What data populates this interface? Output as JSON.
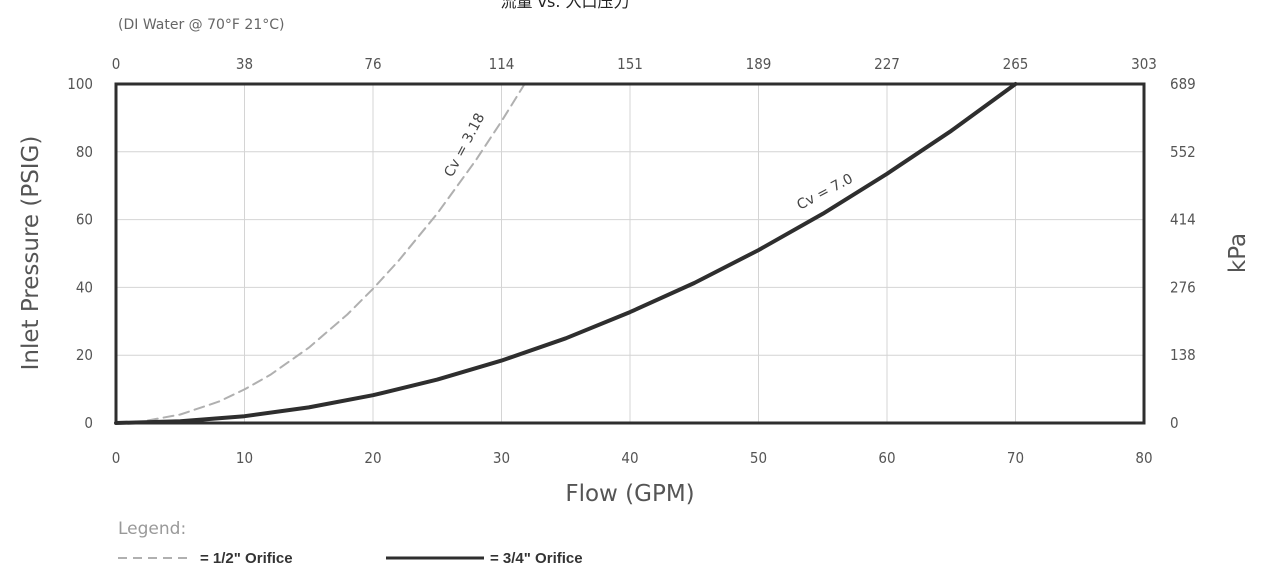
{
  "chart_data": {
    "type": "line",
    "title": "流量 vs. 入口压力",
    "subtitle": "(DI Water @ 70°F  21°C)",
    "xlabel": "Flow (GPM)",
    "ylabel": "Inlet Pressure (PSIG)",
    "y2label": "kPa",
    "xlim": [
      0,
      80
    ],
    "ylim": [
      0,
      100
    ],
    "x_ticks": [
      "0",
      "10",
      "20",
      "30",
      "40",
      "50",
      "60",
      "70",
      "80"
    ],
    "y_ticks": [
      "0",
      "20",
      "40",
      "60",
      "80",
      "100"
    ],
    "x2_ticks": [
      "0",
      "38",
      "76",
      "114",
      "151",
      "189",
      "227",
      "265",
      "303"
    ],
    "y2_ticks": [
      "0",
      "138",
      "276",
      "414",
      "552",
      "689"
    ],
    "grid": true,
    "series": [
      {
        "name": "1/2\" Orifice",
        "label": "Cv = 3.18",
        "style": "dashed",
        "color": "#b0b0b0",
        "x": [
          0,
          2,
          5,
          8,
          10,
          12,
          15,
          18,
          20,
          22,
          25,
          28,
          30,
          31.8
        ],
        "y": [
          0,
          0.4,
          2.5,
          6.3,
          9.9,
          14.2,
          22.2,
          32.0,
          39.6,
          47.9,
          61.8,
          77.5,
          89.0,
          100
        ]
      },
      {
        "name": "3/4\" Orifice",
        "label": "Cv = 7.0",
        "style": "solid",
        "color": "#2e2e2e",
        "x": [
          0,
          5,
          10,
          15,
          20,
          25,
          30,
          35,
          40,
          45,
          50,
          55,
          60,
          65,
          70
        ],
        "y": [
          0,
          0.5,
          2.0,
          4.6,
          8.2,
          12.8,
          18.4,
          25.0,
          32.7,
          41.3,
          51.0,
          61.7,
          73.5,
          86.2,
          100
        ]
      }
    ]
  },
  "legend": {
    "heading": "Legend:",
    "items": [
      {
        "label": "= 1/2\" Orifice"
      },
      {
        "label": "= 3/4\" Orifice"
      }
    ]
  },
  "colors": {
    "frame": "#2e2e2e",
    "grid": "#d4d4d4"
  }
}
